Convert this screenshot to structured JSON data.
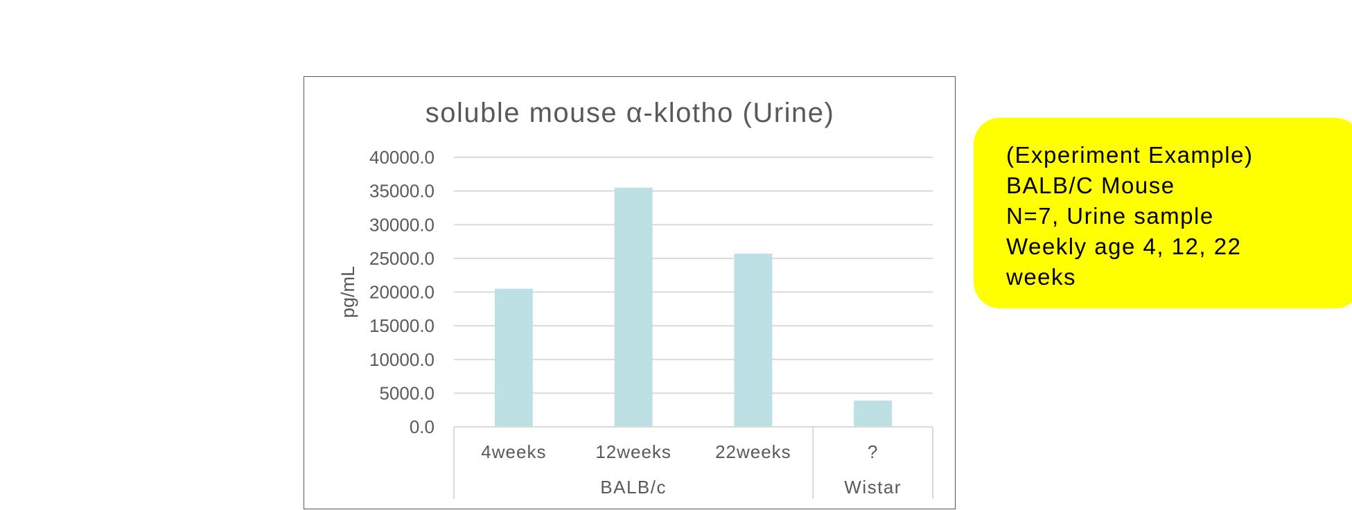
{
  "chart_data": {
    "type": "bar",
    "title": "soluble mouse α-klotho (Urine)",
    "ylabel": "pg/mL",
    "xlabel": "",
    "ylim": [
      0,
      40000
    ],
    "yticks": [
      "0.0",
      "5000.0",
      "10000.0",
      "15000.0",
      "20000.0",
      "25000.0",
      "30000.0",
      "35000.0",
      "40000.0"
    ],
    "categories": [
      "4weeks",
      "12weeks",
      "22weeks",
      "?"
    ],
    "groups": [
      {
        "label": "BALB/c",
        "categories": [
          "4weeks",
          "12weeks",
          "22weeks"
        ]
      },
      {
        "label": "Wistar",
        "categories": [
          "?"
        ]
      }
    ],
    "series": [
      {
        "values": [
          20500,
          35500,
          25700,
          3900
        ]
      }
    ],
    "grid": true,
    "legend": "none"
  },
  "colors": {
    "bar": "#bde0e4",
    "grid": "#d9d9d9",
    "text": "#595959",
    "note_bg": "#ffff00"
  },
  "note": {
    "lines": [
      "(Experiment Example)",
      "BALB/C Mouse",
      "N=7, Urine sample",
      "Weekly age 4, 12, 22",
      "weeks"
    ]
  }
}
